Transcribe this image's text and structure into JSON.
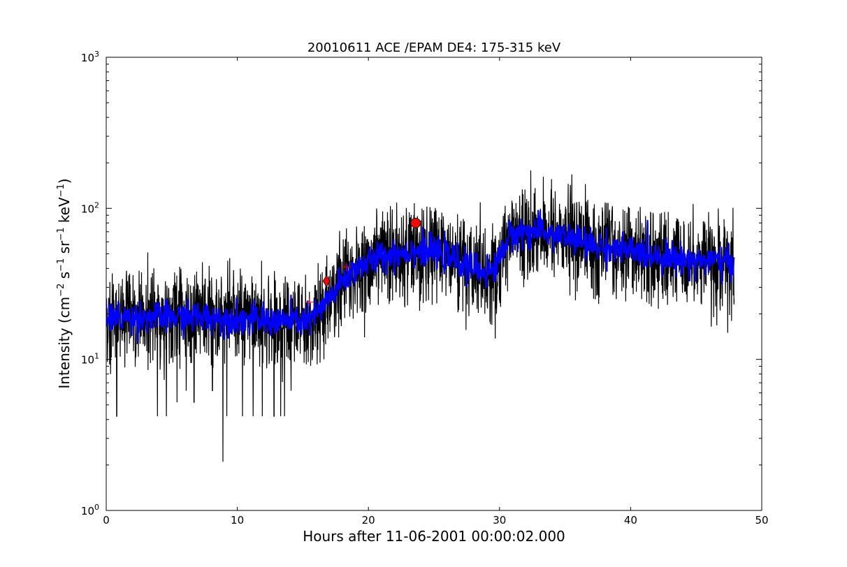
{
  "chart_data": {
    "type": "line",
    "title": "20010611 ACE /EPAM DE4: 175-315 keV",
    "xlabel": "Hours after 11-06-2001 00:00:02.000",
    "ylabel": {
      "prefix": "Intensity (cm",
      "exp1": "−2",
      "s": " s",
      "exp2": "−1",
      "sr": " sr",
      "exp3": "−1",
      "kev": " keV",
      "exp4": "−1",
      "suffix": ")"
    },
    "xlim": [
      0,
      50
    ],
    "ylim": [
      1,
      1000
    ],
    "yscale": "log",
    "x_ticks": [
      0,
      10,
      20,
      30,
      40,
      50
    ],
    "y_ticks": [
      {
        "value": 1,
        "base": "10",
        "exp": "0"
      },
      {
        "value": 10,
        "base": "10",
        "exp": "1"
      },
      {
        "value": 100,
        "base": "10",
        "exp": "2"
      },
      {
        "value": 1000,
        "base": "10",
        "exp": "3"
      }
    ],
    "grid": false,
    "series": [
      {
        "color": "#000000",
        "style": "noisy-raw",
        "x_range": [
          0,
          47.9
        ],
        "baseline": [
          [
            0,
            19
          ],
          [
            2,
            19
          ],
          [
            5,
            19
          ],
          [
            8,
            19
          ],
          [
            12,
            18
          ],
          [
            15.5,
            18
          ],
          [
            16.5,
            22
          ],
          [
            18,
            33
          ],
          [
            19,
            40
          ],
          [
            20,
            44
          ],
          [
            21,
            48
          ],
          [
            22,
            50
          ],
          [
            23,
            52
          ],
          [
            24,
            53
          ],
          [
            25,
            51
          ],
          [
            26,
            48
          ],
          [
            27,
            44
          ],
          [
            28,
            40
          ],
          [
            29,
            38
          ],
          [
            29.5,
            38
          ],
          [
            30.2,
            52
          ],
          [
            30.5,
            60
          ],
          [
            31,
            68
          ],
          [
            32,
            70
          ],
          [
            33,
            70
          ],
          [
            34,
            68
          ],
          [
            35,
            65
          ],
          [
            36,
            61
          ],
          [
            37,
            57
          ],
          [
            38,
            55
          ],
          [
            40,
            52
          ],
          [
            42,
            49
          ],
          [
            44,
            46
          ],
          [
            46,
            45
          ],
          [
            47.9,
            43
          ]
        ],
        "outliers": [
          [
            0.8,
            4.2
          ],
          [
            3.9,
            4.2
          ],
          [
            4.6,
            4.2
          ],
          [
            5.4,
            5.2
          ],
          [
            6.1,
            6.2
          ],
          [
            6.7,
            5.2
          ],
          [
            8.1,
            6.2
          ],
          [
            8.9,
            2.1
          ],
          [
            9.2,
            4.2
          ],
          [
            10.4,
            4.2
          ],
          [
            11.2,
            4.2
          ],
          [
            11.9,
            4.2
          ],
          [
            12.8,
            4.2
          ],
          [
            13.3,
            4.2
          ],
          [
            13.6,
            4.2
          ],
          [
            14.1,
            6.2
          ],
          [
            15.1,
            9.5
          ],
          [
            16.6,
            10
          ],
          [
            19.7,
            14
          ],
          [
            23.9,
            21
          ],
          [
            28.6,
            22
          ],
          [
            37.3,
            25
          ],
          [
            40.2,
            27
          ],
          [
            47.4,
            15
          ],
          [
            47.7,
            18
          ]
        ]
      },
      {
        "color": "#0000ff",
        "style": "smoothed",
        "x_range": [
          0,
          47.9
        ],
        "baseline": [
          [
            0,
            19
          ],
          [
            2,
            19
          ],
          [
            5,
            19
          ],
          [
            8,
            19
          ],
          [
            12,
            18
          ],
          [
            15.5,
            18
          ],
          [
            16.5,
            22
          ],
          [
            18,
            33
          ],
          [
            19,
            40
          ],
          [
            20,
            44
          ],
          [
            21,
            48
          ],
          [
            22,
            50
          ],
          [
            23,
            52
          ],
          [
            24,
            53
          ],
          [
            25,
            51
          ],
          [
            26,
            48
          ],
          [
            27,
            44
          ],
          [
            28,
            40
          ],
          [
            29,
            38
          ],
          [
            29.5,
            38
          ],
          [
            30.2,
            52
          ],
          [
            30.5,
            60
          ],
          [
            31,
            68
          ],
          [
            32,
            70
          ],
          [
            33,
            70
          ],
          [
            34,
            68
          ],
          [
            35,
            65
          ],
          [
            36,
            61
          ],
          [
            37,
            57
          ],
          [
            38,
            55
          ],
          [
            40,
            52
          ],
          [
            42,
            49
          ],
          [
            44,
            46
          ],
          [
            46,
            45
          ],
          [
            47.9,
            43
          ]
        ]
      }
    ],
    "markers": [
      {
        "x": 15.5,
        "y": 24,
        "symbol": "plus",
        "color": "#ff0000"
      },
      {
        "x": 16.8,
        "y": 33,
        "symbol": "diamond",
        "color": "#ff0000"
      },
      {
        "x": 18.3,
        "y": 41,
        "symbol": "plus",
        "color": "#ff0000"
      },
      {
        "x": 23.6,
        "y": 80,
        "symbol": "circle",
        "color": "#ff0000"
      }
    ]
  }
}
